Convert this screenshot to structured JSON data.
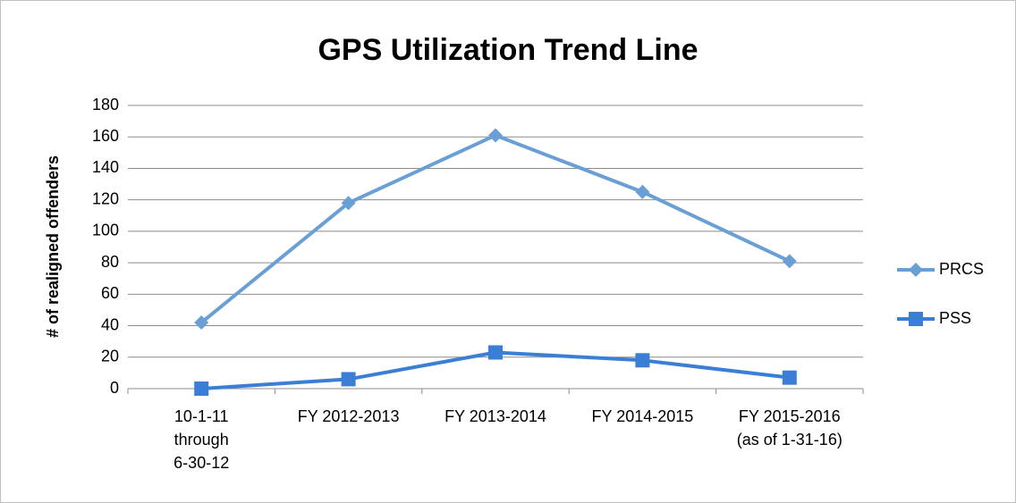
{
  "chart_data": {
    "type": "line",
    "title": "GPS Utilization Trend Line",
    "y_label": "# of realigned offenders",
    "categories": [
      "10-1-11\nthrough\n6-30-12",
      "FY 2012-2013",
      "FY 2013-2014",
      "FY 2014-2015",
      "FY 2015-2016\n(as of 1-31-16)"
    ],
    "series": [
      {
        "name": "PRCS",
        "color": "#6a9fd6",
        "marker": "diamond",
        "values": [
          42,
          118,
          161,
          125,
          81
        ]
      },
      {
        "name": "PSS",
        "color": "#3a7fd5",
        "marker": "square",
        "values": [
          0,
          6,
          23,
          18,
          7
        ]
      }
    ],
    "ylim": [
      0,
      180
    ],
    "yticks": [
      0,
      20,
      40,
      60,
      80,
      100,
      120,
      140,
      160,
      180
    ],
    "grid": true,
    "legend": "right"
  }
}
